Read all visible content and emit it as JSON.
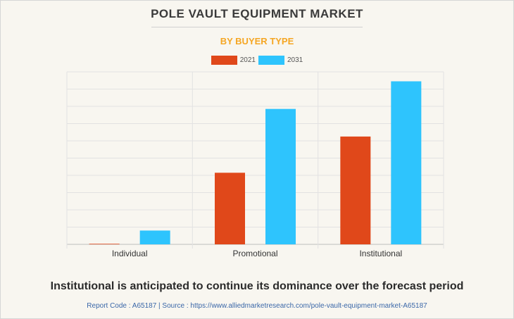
{
  "header": {
    "title": "POLE VAULT EQUIPMENT MARKET",
    "subtitle": "BY BUYER TYPE"
  },
  "colors": {
    "series_2021": "#e0481a",
    "series_2031": "#2ec4fd",
    "grid": "#e2e2e2",
    "axis": "#bdbdbd"
  },
  "chart_data": {
    "type": "bar",
    "title": "POLE VAULT EQUIPMENT MARKET",
    "subtitle": "BY BUYER TYPE",
    "categories": [
      "Individual",
      "Promotional",
      "Institutional"
    ],
    "series": [
      {
        "name": "2021",
        "values": [
          0.2,
          41.5,
          62.5
        ]
      },
      {
        "name": "2031",
        "values": [
          8,
          78.5,
          94.5
        ]
      }
    ],
    "ylim": [
      0,
      100
    ],
    "grid": true,
    "legend": "top-center",
    "xlabel": "",
    "ylabel": ""
  },
  "footer": {
    "caption": "Institutional is anticipated to continue its dominance over the forecast period",
    "source": "Report Code : A65187  |  Source : https://www.alliedmarketresearch.com/pole-vault-equipment-market-A65187"
  }
}
